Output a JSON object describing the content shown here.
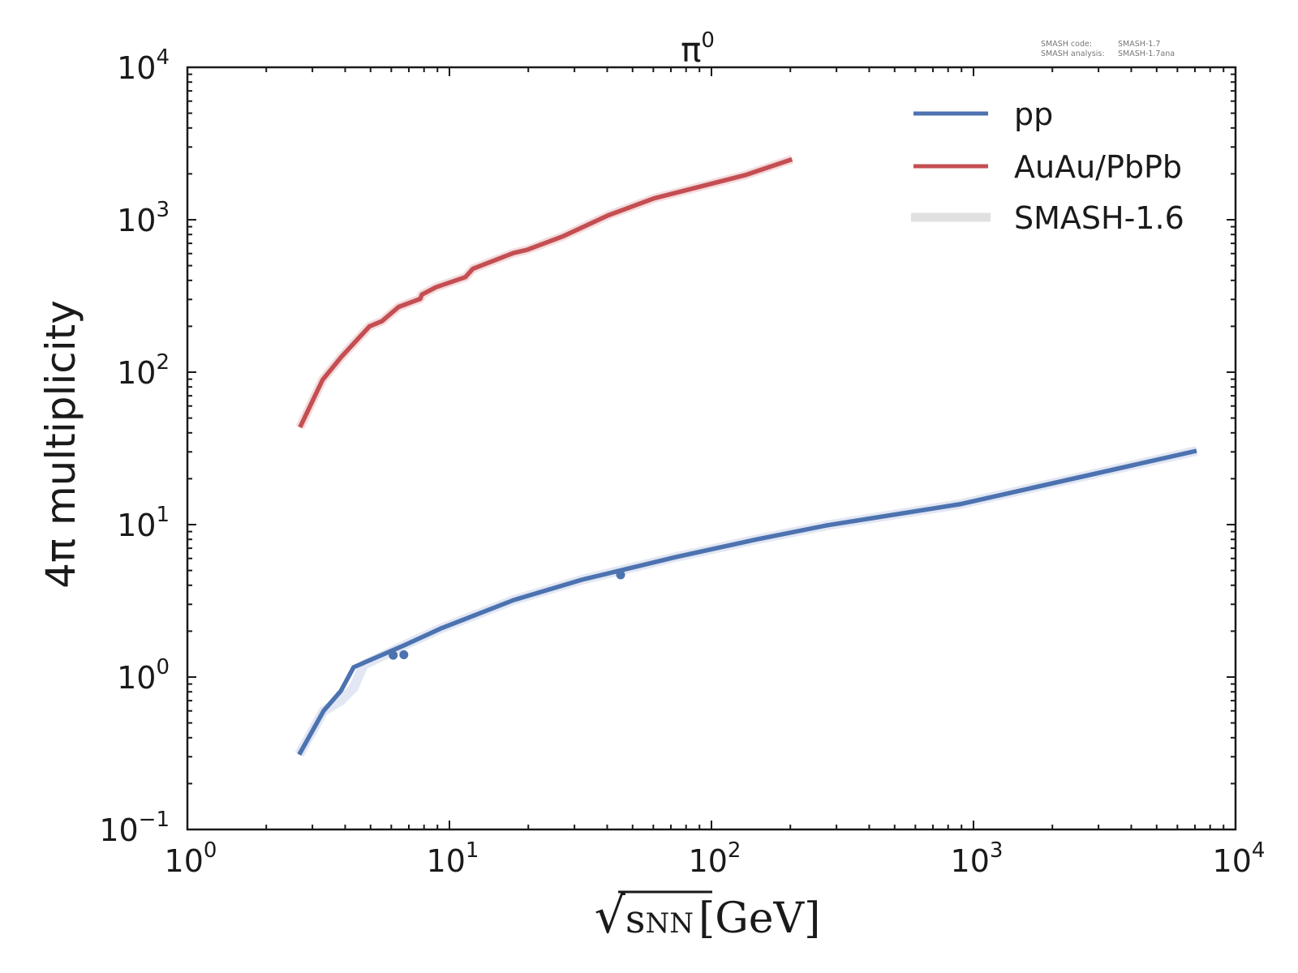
{
  "version_info": {
    "code_label": "SMASH code:",
    "code_value": "SMASH-1.7",
    "analysis_label": "SMASH analysis:",
    "analysis_value": "SMASH-1.7ana"
  },
  "colors": {
    "pp": "#4c72b0",
    "AuAu_PbPb": "#c44e52",
    "reference": "#e0e0e0",
    "pp_band": "#e2e7f3",
    "AuAu_band": "#f3dcdd",
    "axis": "#1a1a1a"
  },
  "chart_data": {
    "type": "line",
    "title": "π",
    "title_superscript": "0",
    "xlabel": {
      "sqrt": "√",
      "variable": "s",
      "subscript": "NN",
      "unit": "[GeV]"
    },
    "ylabel": "4π multiplicity",
    "xscale": "log",
    "yscale": "log",
    "xlim": [
      1,
      10000
    ],
    "ylim": [
      0.1,
      10000
    ],
    "grid": false,
    "legend_position": "top-right",
    "x_ticks": [
      {
        "value": 1,
        "base": "10",
        "exp": "0"
      },
      {
        "value": 10,
        "base": "10",
        "exp": "1"
      },
      {
        "value": 100,
        "base": "10",
        "exp": "2"
      },
      {
        "value": 1000,
        "base": "10",
        "exp": "3"
      },
      {
        "value": 10000,
        "base": "10",
        "exp": "4"
      }
    ],
    "y_ticks": [
      {
        "value": 0.1,
        "base": "10",
        "exp": "−1"
      },
      {
        "value": 1,
        "base": "10",
        "exp": "0"
      },
      {
        "value": 10,
        "base": "10",
        "exp": "1"
      },
      {
        "value": 100,
        "base": "10",
        "exp": "2"
      },
      {
        "value": 1000,
        "base": "10",
        "exp": "3"
      },
      {
        "value": 10000,
        "base": "10",
        "exp": "4"
      }
    ],
    "series": [
      {
        "name": "pp",
        "color_key": "pp",
        "x": [
          2.67,
          3.31,
          3.85,
          4.31,
          6.8,
          9.25,
          17.6,
          32,
          73,
          149,
          277,
          885,
          7100
        ],
        "y": [
          0.31,
          0.6,
          0.81,
          1.16,
          1.63,
          2.08,
          3.2,
          4.35,
          6.12,
          8.0,
          9.9,
          13.6,
          30.5
        ]
      },
      {
        "name": "AuAu/PbPb",
        "color_key": "AuAu_PbPb",
        "x": [
          2.69,
          3.28,
          3.87,
          4.96,
          5.53,
          6.4,
          7.74,
          7.85,
          8.89,
          11.5,
          12.3,
          17.5,
          19.8,
          27,
          40.4,
          60.3,
          134,
          203
        ],
        "y": [
          43.5,
          89,
          126,
          200,
          216,
          268,
          303,
          323,
          361,
          420,
          477,
          604,
          635,
          776,
          1070,
          1380,
          1960,
          2490
        ]
      }
    ],
    "reference": {
      "name": "SMASH-1.6",
      "pp": {
        "x": [
          2.67,
          3.31,
          3.85,
          4.31,
          4.7,
          6.8,
          9.25,
          17.6,
          32,
          73,
          149,
          277,
          885,
          7100
        ],
        "y": [
          0.31,
          0.6,
          0.7,
          0.85,
          1.2,
          1.63,
          2.08,
          3.2,
          4.35,
          6.12,
          8.0,
          9.9,
          13.6,
          30.5
        ]
      },
      "AuAu_PbPb": {
        "x": [
          2.69,
          3.28,
          3.87,
          4.96,
          5.53,
          6.4,
          7.74,
          7.85,
          8.89,
          11.5,
          12.3,
          17.5,
          19.8,
          27,
          40.4,
          60.3,
          134,
          203
        ],
        "y": [
          43.5,
          89,
          126,
          200,
          216,
          268,
          303,
          323,
          361,
          420,
          477,
          604,
          635,
          776,
          1070,
          1380,
          1960,
          2490
        ]
      }
    },
    "data_points": {
      "name": "pp data",
      "x": [
        6.1,
        6.7,
        45
      ],
      "y": [
        1.39,
        1.4,
        4.68
      ]
    },
    "legend": [
      {
        "label": "pp",
        "color_key": "pp"
      },
      {
        "label": "AuAu/PbPb",
        "color_key": "AuAu_PbPb"
      },
      {
        "label": "SMASH-1.6",
        "color_key": "reference"
      }
    ]
  }
}
